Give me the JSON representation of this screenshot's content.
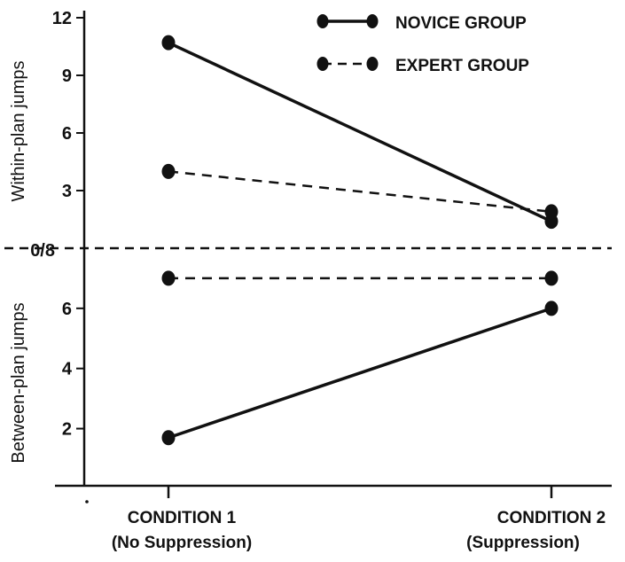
{
  "chart_data": {
    "type": "line",
    "categories": [
      {
        "label": "CONDITION 1",
        "sublabel": "(No Suppression)"
      },
      {
        "label": "CONDITION 2",
        "sublabel": "(Suppression)"
      }
    ],
    "upper_panel": {
      "ylabel": "Within-plan jumps",
      "ylim": [
        0,
        12
      ],
      "ticks": [
        "3",
        "6",
        "9",
        "12"
      ],
      "series": [
        {
          "name": "NOVICE GROUP",
          "style": "solid",
          "values": [
            10.7,
            1.4
          ]
        },
        {
          "name": "EXPERT GROUP",
          "style": "dashed",
          "values": [
            4.0,
            1.9
          ]
        }
      ]
    },
    "lower_panel": {
      "ylabel": "Between-plan jumps",
      "ylim": [
        0,
        8
      ],
      "ticks": [
        "2",
        "4",
        "6"
      ],
      "series": [
        {
          "name": "NOVICE GROUP",
          "style": "solid",
          "values": [
            1.7,
            6.0
          ]
        },
        {
          "name": "EXPERT GROUP",
          "style": "dashed",
          "values": [
            7.0,
            7.0
          ]
        }
      ]
    },
    "divider_label": "0/8",
    "legend": [
      {
        "name": "NOVICE GROUP",
        "style": "solid"
      },
      {
        "name": "EXPERT GROUP",
        "style": "dashed"
      }
    ],
    "legend_position": "top-right",
    "grid": false,
    "line_color": "#111111"
  }
}
